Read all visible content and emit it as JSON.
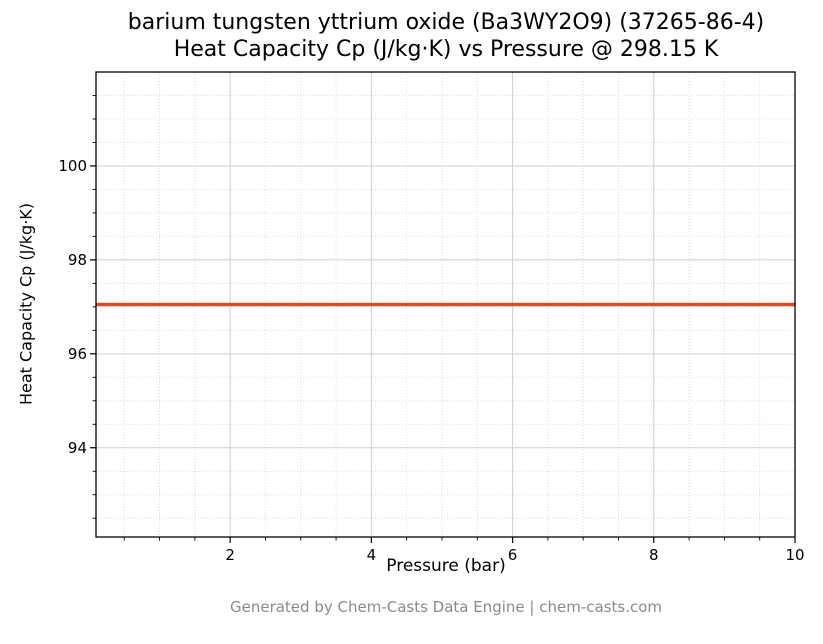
{
  "title": {
    "line1": "barium tungsten yttrium oxide (Ba3WY2O9) (37265-86-4)",
    "line2": "Heat Capacity Cp (J/kg·K) vs Pressure @ 298.15 K"
  },
  "footer": {
    "text": "Generated by Chem-Casts Data Engine | chem-casts.com"
  },
  "chart_data": {
    "type": "line",
    "title": "barium tungsten yttrium oxide (Ba3WY2O9) (37265-86-4) — Heat Capacity Cp (J/kg·K) vs Pressure @ 298.15 K",
    "xlabel": "Pressure (bar)",
    "ylabel": "Heat Capacity Cp (J/kg·K)",
    "xlim": [
      0.1,
      10
    ],
    "ylim": [
      92.1,
      102.0
    ],
    "x_ticks": [
      2,
      4,
      6,
      8,
      10
    ],
    "y_ticks": [
      94,
      96,
      98,
      100
    ],
    "x_minor_step": 0.5,
    "y_minor_step": 0.5,
    "grid": true,
    "legend": "none",
    "colors": {
      "line": "#d2512a",
      "grid_major": "#cfcfcf",
      "grid_minor": "#dcdcdc",
      "border": "#000000"
    },
    "series": [
      {
        "name": "Heat Capacity Cp",
        "color": "#d2512a",
        "x": [
          0.1,
          10
        ],
        "y": [
          97.05,
          97.05
        ]
      }
    ]
  }
}
